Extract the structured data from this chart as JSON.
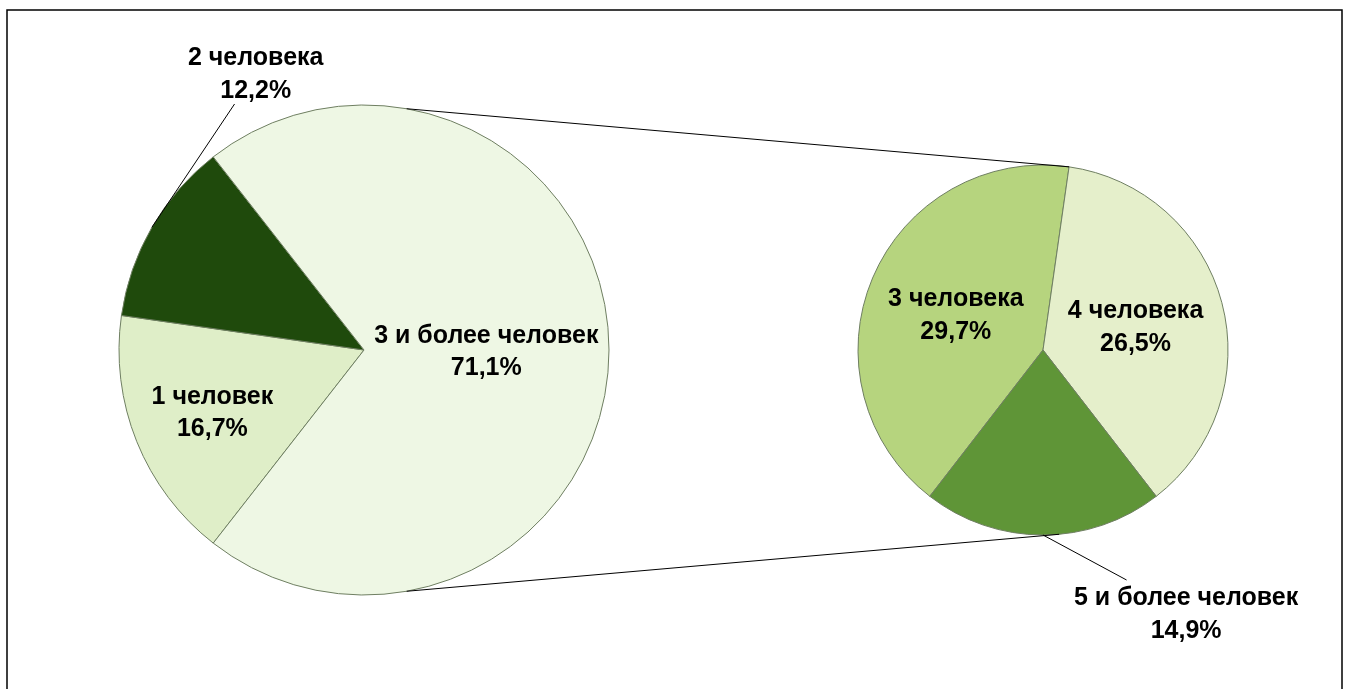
{
  "chart_data": [
    {
      "type": "pie",
      "categories": [
        "1 человек",
        "2 человека",
        "3 и более человек"
      ],
      "values": [
        16.7,
        12.2,
        71.1
      ],
      "value_labels": [
        "16,7%",
        "12,2%",
        "71,1%"
      ],
      "colors": [
        "#dfeec8",
        "#1f4a0c",
        "#eef7e4"
      ]
    },
    {
      "type": "pie",
      "categories": [
        "3 человека",
        "4 человека",
        "5 и более человек"
      ],
      "values": [
        29.7,
        26.5,
        14.9
      ],
      "value_labels": [
        "29,7%",
        "26,5%",
        "14,9%"
      ],
      "colors": [
        "#b6d47e",
        "#e5efcb",
        "#5f9537"
      ]
    }
  ]
}
